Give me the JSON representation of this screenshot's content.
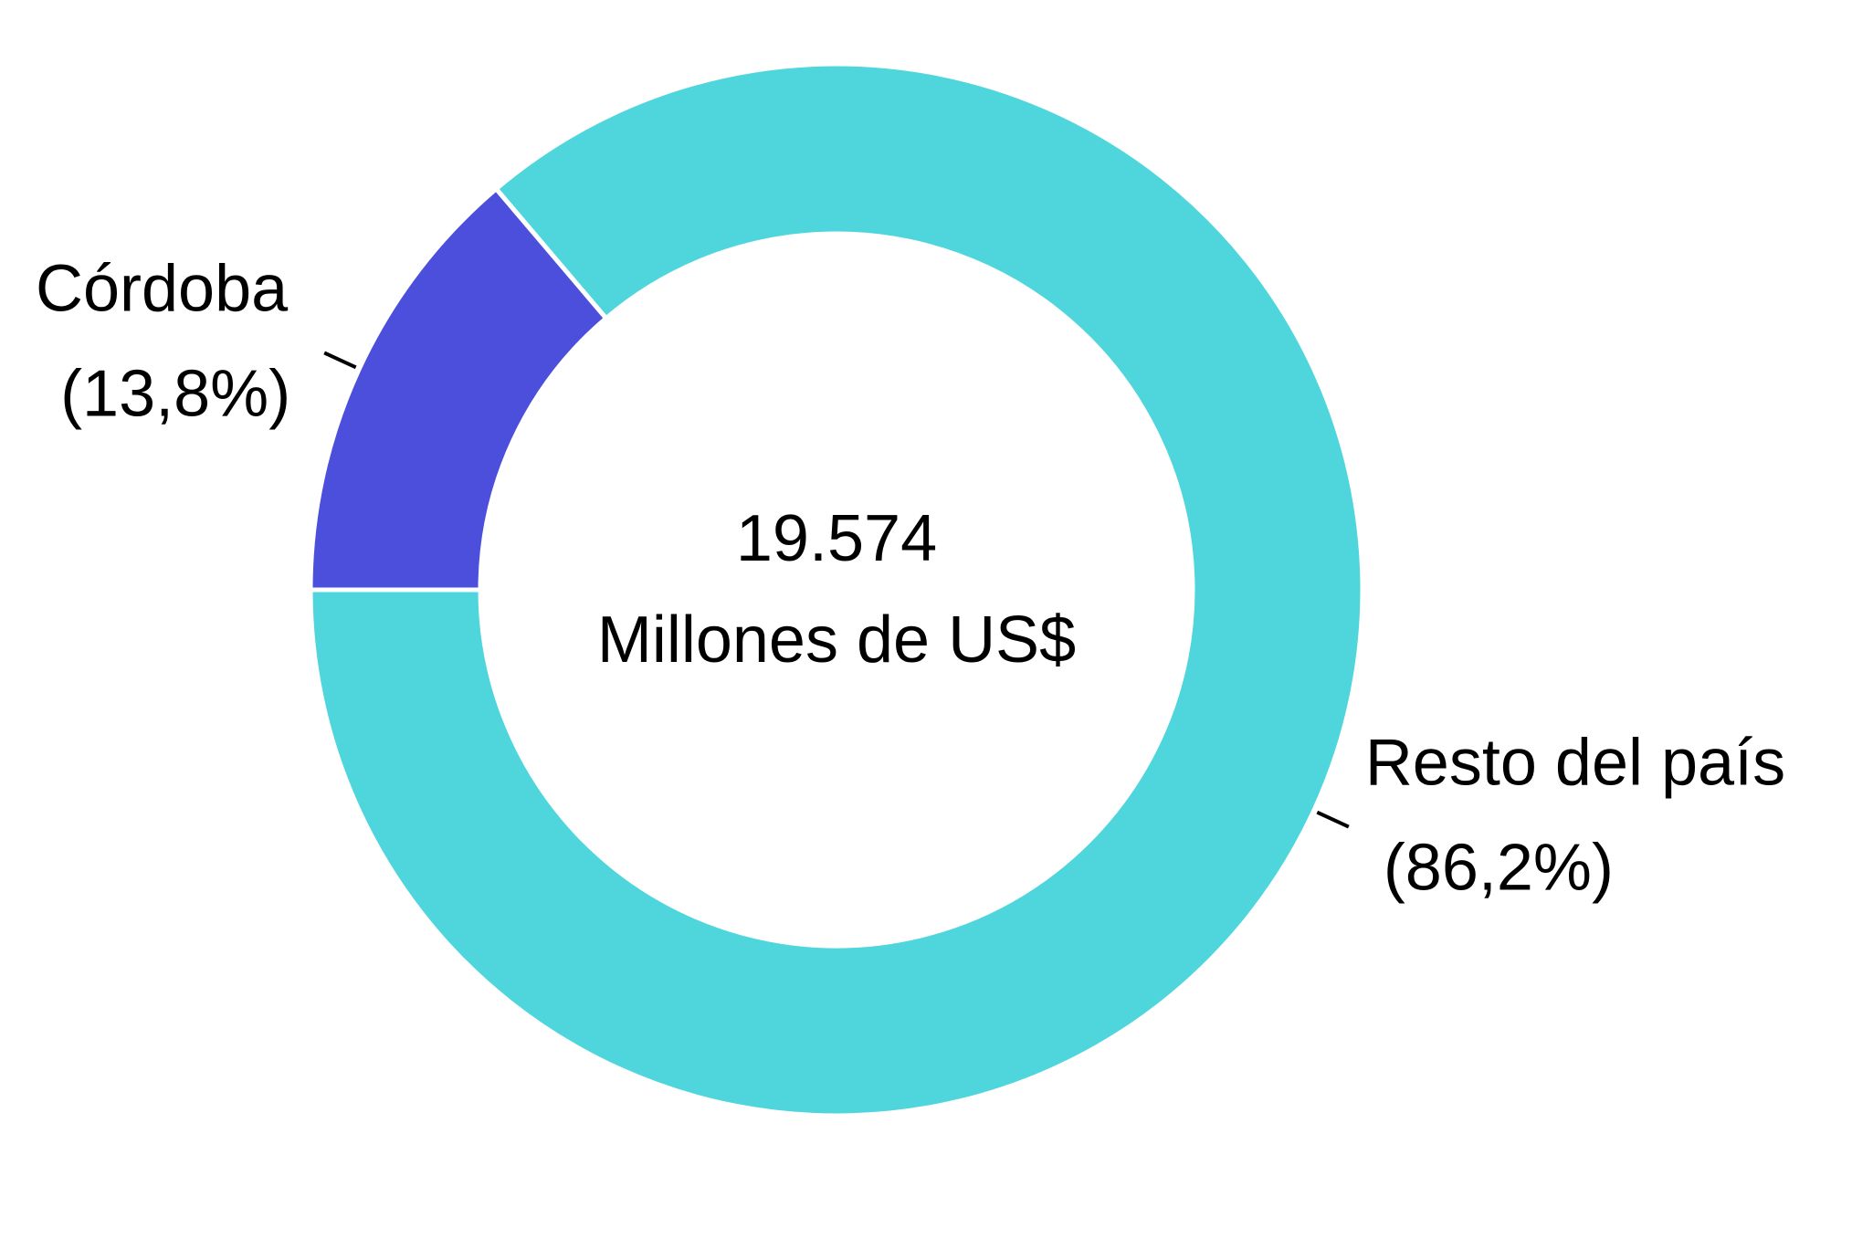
{
  "chart_data": {
    "type": "donut",
    "categories": [
      "Córdoba",
      "Resto del país"
    ],
    "values": [
      13.8,
      86.2
    ],
    "value_labels": [
      "(13,8%)",
      "(86,2%)"
    ],
    "colors": [
      "#4b4fdb",
      "#4fd6dc"
    ],
    "center_text": [
      "19.574",
      "Millones de US$"
    ]
  }
}
